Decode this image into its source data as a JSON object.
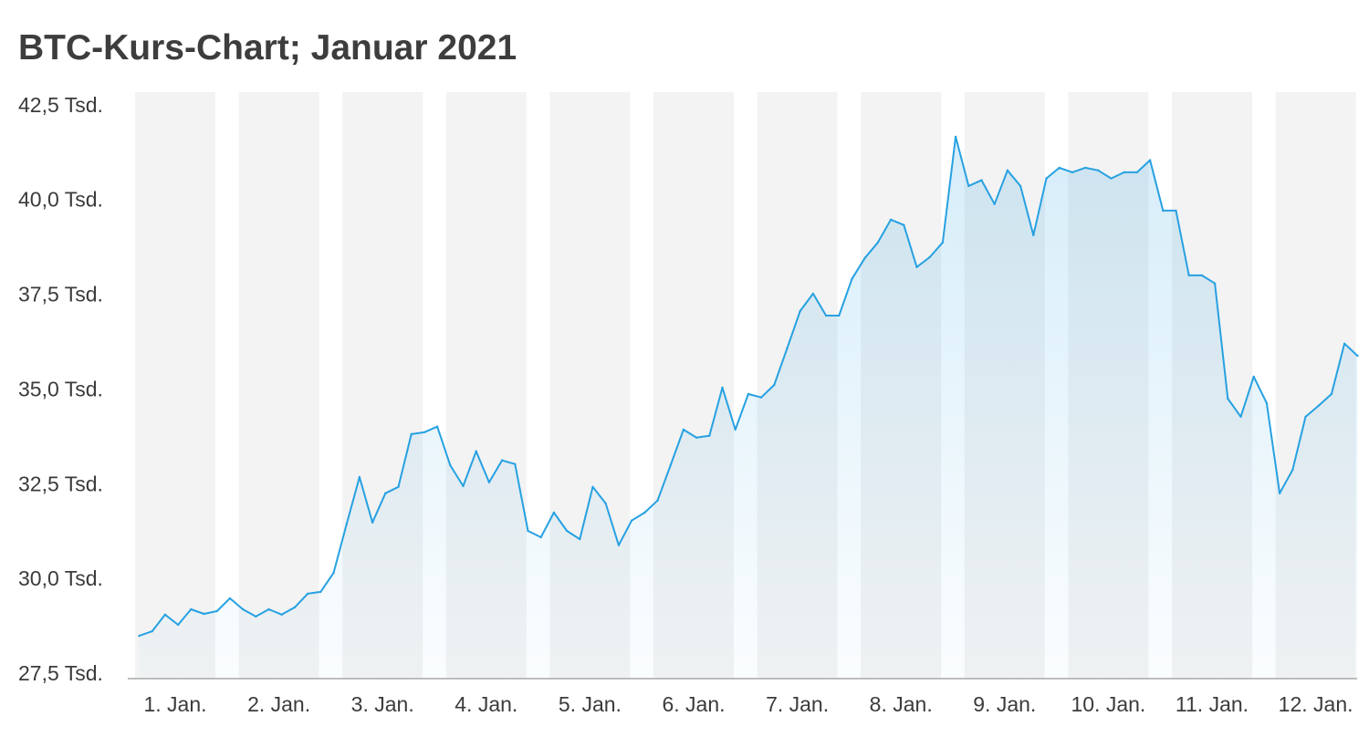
{
  "chart_data": {
    "type": "area",
    "title": "BTC-Kurs-Chart; Januar 2021",
    "x": [
      "2021-01-01 00:00",
      "2021-01-01 03:00",
      "2021-01-01 06:00",
      "2021-01-01 09:00",
      "2021-01-01 12:00",
      "2021-01-01 15:00",
      "2021-01-01 18:00",
      "2021-01-01 21:00",
      "2021-01-02 00:00",
      "2021-01-02 03:00",
      "2021-01-02 06:00",
      "2021-01-02 09:00",
      "2021-01-02 12:00",
      "2021-01-02 15:00",
      "2021-01-02 18:00",
      "2021-01-02 21:00",
      "2021-01-03 00:00",
      "2021-01-03 03:00",
      "2021-01-03 06:00",
      "2021-01-03 09:00",
      "2021-01-03 12:00",
      "2021-01-03 15:00",
      "2021-01-03 18:00",
      "2021-01-03 21:00",
      "2021-01-04 00:00",
      "2021-01-04 03:00",
      "2021-01-04 06:00",
      "2021-01-04 09:00",
      "2021-01-04 12:00",
      "2021-01-04 15:00",
      "2021-01-04 18:00",
      "2021-01-04 21:00",
      "2021-01-05 00:00",
      "2021-01-05 03:00",
      "2021-01-05 06:00",
      "2021-01-05 09:00",
      "2021-01-05 12:00",
      "2021-01-05 15:00",
      "2021-01-05 18:00",
      "2021-01-05 21:00",
      "2021-01-06 00:00",
      "2021-01-06 03:00",
      "2021-01-06 06:00",
      "2021-01-06 09:00",
      "2021-01-06 12:00",
      "2021-01-06 15:00",
      "2021-01-06 18:00",
      "2021-01-06 21:00",
      "2021-01-07 00:00",
      "2021-01-07 03:00",
      "2021-01-07 06:00",
      "2021-01-07 09:00",
      "2021-01-07 12:00",
      "2021-01-07 15:00",
      "2021-01-07 18:00",
      "2021-01-07 21:00",
      "2021-01-08 00:00",
      "2021-01-08 03:00",
      "2021-01-08 06:00",
      "2021-01-08 09:00",
      "2021-01-08 12:00",
      "2021-01-08 15:00",
      "2021-01-08 18:00",
      "2021-01-08 21:00",
      "2021-01-09 00:00",
      "2021-01-09 03:00",
      "2021-01-09 06:00",
      "2021-01-09 09:00",
      "2021-01-09 12:00",
      "2021-01-09 15:00",
      "2021-01-09 18:00",
      "2021-01-09 21:00",
      "2021-01-10 00:00",
      "2021-01-10 03:00",
      "2021-01-10 06:00",
      "2021-01-10 09:00",
      "2021-01-10 12:00",
      "2021-01-10 15:00",
      "2021-01-10 18:00",
      "2021-01-10 21:00",
      "2021-01-11 00:00",
      "2021-01-11 03:00",
      "2021-01-11 06:00",
      "2021-01-11 09:00",
      "2021-01-11 12:00",
      "2021-01-11 15:00",
      "2021-01-11 18:00",
      "2021-01-11 21:00",
      "2021-01-12 00:00",
      "2021-01-12 03:00",
      "2021-01-12 06:00",
      "2021-01-12 09:00",
      "2021-01-12 12:00",
      "2021-01-12 15:00",
      "2021-01-12 18:00"
    ],
    "values": [
      28630,
      28750,
      29190,
      28920,
      29330,
      29210,
      29280,
      29620,
      29330,
      29140,
      29330,
      29190,
      29380,
      29740,
      29790,
      30290,
      31570,
      32820,
      31620,
      32390,
      32560,
      33950,
      34000,
      34150,
      33130,
      32580,
      33500,
      32680,
      33260,
      33160,
      31400,
      31230,
      31880,
      31400,
      31180,
      32560,
      32120,
      31020,
      31670,
      31880,
      32200,
      33130,
      34070,
      33860,
      33910,
      35180,
      34070,
      35010,
      34920,
      35250,
      36220,
      37200,
      37660,
      37080,
      37080,
      38050,
      38600,
      39010,
      39610,
      39470,
      38360,
      38620,
      39010,
      41800,
      40500,
      40650,
      40020,
      40910,
      40500,
      39200,
      40700,
      40980,
      40860,
      40980,
      40910,
      40700,
      40860,
      40860,
      41180,
      39850,
      39850,
      38140,
      38140,
      37930,
      34890,
      34410,
      35470,
      34770,
      32390,
      33010,
      34410,
      34700,
      35010,
      36340,
      36020
    ],
    "x_tick_labels": [
      "1. Jan.",
      "2. Jan.",
      "3. Jan.",
      "4. Jan.",
      "5. Jan.",
      "6. Jan.",
      "7. Jan.",
      "8. Jan.",
      "9. Jan.",
      "10. Jan.",
      "11. Jan.",
      "12. Jan."
    ],
    "y_ticks": [
      27500,
      30000,
      32500,
      35000,
      37500,
      40000,
      42500
    ],
    "y_tick_labels": [
      "27,5 Tsd.",
      "30,0 Tsd.",
      "32,5 Tsd.",
      "35,0 Tsd.",
      "37,5 Tsd.",
      "40,0 Tsd.",
      "42,5 Tsd."
    ],
    "ylim": [
      27500,
      43000
    ],
    "grid": false,
    "legend": "none",
    "colors": {
      "line": "#27a1e2",
      "area": "#27a1e2",
      "day_band": "#f3f3f3",
      "axis": "#a9a9a9",
      "text": "#3b3b3b",
      "title": "#3d3d3d"
    }
  }
}
